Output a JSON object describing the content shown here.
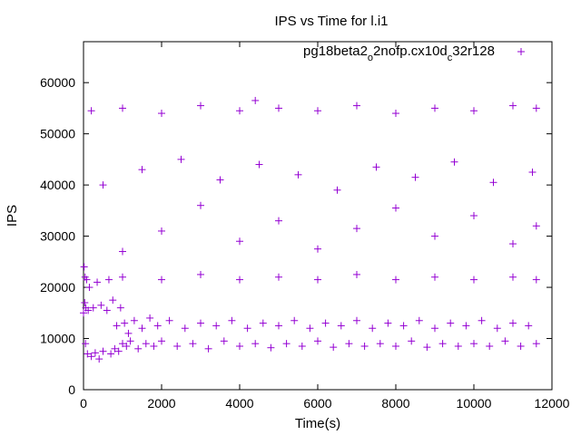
{
  "chart_data": {
    "type": "scatter",
    "title": "IPS vs Time for l.i1",
    "xlabel": "Time(s)",
    "ylabel": "IPS",
    "xlim": [
      0,
      12000
    ],
    "ylim": [
      0,
      68000
    ],
    "xticks": [
      0,
      2000,
      4000,
      6000,
      8000,
      10000,
      12000
    ],
    "yticks": [
      0,
      10000,
      20000,
      30000,
      40000,
      50000,
      60000
    ],
    "grid": false,
    "legend_position": "top-right",
    "marker": "plus",
    "color": "#9400d3",
    "series": [
      {
        "name": "pg18beta2_o2nofp.cx10d_c32r128",
        "name_parts": {
          "a": "pg18beta2",
          "sub1": "o",
          "b": "2nofp.cx10d",
          "sub2": "c",
          "c": "32r128"
        },
        "points": [
          [
            0,
            15000
          ],
          [
            15,
            24000
          ],
          [
            30,
            17000
          ],
          [
            40,
            22000
          ],
          [
            50,
            9000
          ],
          [
            60,
            16000
          ],
          [
            80,
            21500
          ],
          [
            100,
            7000
          ],
          [
            120,
            15500
          ],
          [
            150,
            20000
          ],
          [
            200,
            6500
          ],
          [
            250,
            16000
          ],
          [
            300,
            7200
          ],
          [
            350,
            21000
          ],
          [
            400,
            6000
          ],
          [
            450,
            16500
          ],
          [
            500,
            7500
          ],
          [
            600,
            15500
          ],
          [
            650,
            21500
          ],
          [
            700,
            7000
          ],
          [
            750,
            17500
          ],
          [
            800,
            8000
          ],
          [
            850,
            12500
          ],
          [
            900,
            7500
          ],
          [
            950,
            16000
          ],
          [
            1000,
            9000
          ],
          [
            1050,
            13000
          ],
          [
            1100,
            8500
          ],
          [
            1150,
            11000
          ],
          [
            1200,
            9500
          ],
          [
            1300,
            13500
          ],
          [
            1400,
            8000
          ],
          [
            1500,
            12000
          ],
          [
            1600,
            9000
          ],
          [
            1700,
            14000
          ],
          [
            1800,
            8500
          ],
          [
            1900,
            12500
          ],
          [
            2000,
            9500
          ],
          [
            2200,
            13500
          ],
          [
            2400,
            8500
          ],
          [
            2600,
            12000
          ],
          [
            2800,
            9000
          ],
          [
            3000,
            13000
          ],
          [
            3200,
            8000
          ],
          [
            3400,
            12500
          ],
          [
            3600,
            9500
          ],
          [
            3800,
            13500
          ],
          [
            4000,
            8500
          ],
          [
            4200,
            12000
          ],
          [
            4400,
            9000
          ],
          [
            4600,
            13000
          ],
          [
            4800,
            8200
          ],
          [
            5000,
            12500
          ],
          [
            5200,
            9000
          ],
          [
            5400,
            13500
          ],
          [
            5600,
            8500
          ],
          [
            5800,
            12000
          ],
          [
            6000,
            9500
          ],
          [
            6200,
            13000
          ],
          [
            6400,
            8300
          ],
          [
            6600,
            12500
          ],
          [
            6800,
            9000
          ],
          [
            7000,
            13500
          ],
          [
            7200,
            8500
          ],
          [
            7400,
            12000
          ],
          [
            7600,
            9000
          ],
          [
            7800,
            13000
          ],
          [
            8000,
            8500
          ],
          [
            8200,
            12500
          ],
          [
            8400,
            9500
          ],
          [
            8600,
            13500
          ],
          [
            8800,
            8300
          ],
          [
            9000,
            12000
          ],
          [
            9200,
            9000
          ],
          [
            9400,
            13000
          ],
          [
            9600,
            8500
          ],
          [
            9800,
            12500
          ],
          [
            10000,
            9000
          ],
          [
            10200,
            13500
          ],
          [
            10400,
            8500
          ],
          [
            10600,
            12000
          ],
          [
            10800,
            9500
          ],
          [
            11000,
            13000
          ],
          [
            11200,
            8500
          ],
          [
            11400,
            12500
          ],
          [
            11600,
            9000
          ],
          [
            1000,
            22000
          ],
          [
            1000,
            27000
          ],
          [
            2000,
            21500
          ],
          [
            2000,
            31000
          ],
          [
            3000,
            22500
          ],
          [
            3000,
            36000
          ],
          [
            4000,
            21500
          ],
          [
            4000,
            29000
          ],
          [
            5000,
            22000
          ],
          [
            5000,
            33000
          ],
          [
            6000,
            21500
          ],
          [
            6000,
            27500
          ],
          [
            7000,
            22500
          ],
          [
            7000,
            31500
          ],
          [
            8000,
            21500
          ],
          [
            8000,
            35500
          ],
          [
            9000,
            22000
          ],
          [
            9000,
            30000
          ],
          [
            10000,
            21500
          ],
          [
            10000,
            34000
          ],
          [
            11000,
            22000
          ],
          [
            11000,
            28500
          ],
          [
            11600,
            21500
          ],
          [
            11600,
            32000
          ],
          [
            500,
            40000
          ],
          [
            1500,
            43000
          ],
          [
            2500,
            45000
          ],
          [
            3500,
            41000
          ],
          [
            4500,
            44000
          ],
          [
            5500,
            42000
          ],
          [
            6500,
            39000
          ],
          [
            7500,
            43500
          ],
          [
            8500,
            41500
          ],
          [
            9500,
            44500
          ],
          [
            10500,
            40500
          ],
          [
            11500,
            42500
          ],
          [
            200,
            54500
          ],
          [
            1000,
            55000
          ],
          [
            2000,
            54000
          ],
          [
            3000,
            55500
          ],
          [
            4000,
            54500
          ],
          [
            4400,
            56500
          ],
          [
            5000,
            55000
          ],
          [
            6000,
            54500
          ],
          [
            7000,
            55500
          ],
          [
            8000,
            54000
          ],
          [
            9000,
            55000
          ],
          [
            10000,
            54500
          ],
          [
            11000,
            55500
          ],
          [
            11600,
            55000
          ]
        ]
      }
    ]
  }
}
